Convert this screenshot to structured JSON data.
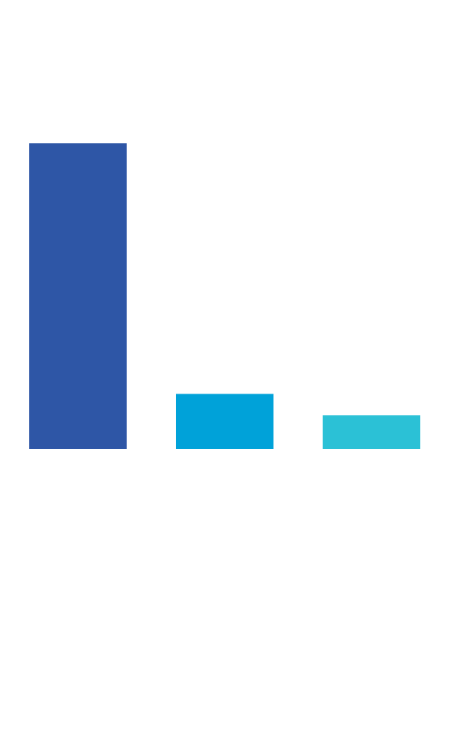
{
  "chart_data": {
    "type": "bar",
    "categories": [
      null,
      null,
      null
    ],
    "values": [
      100,
      18,
      11
    ],
    "colors": [
      "#2e56a6",
      "#00a2d9",
      "#2bc1d6"
    ],
    "ylim": [
      0,
      100
    ]
  }
}
